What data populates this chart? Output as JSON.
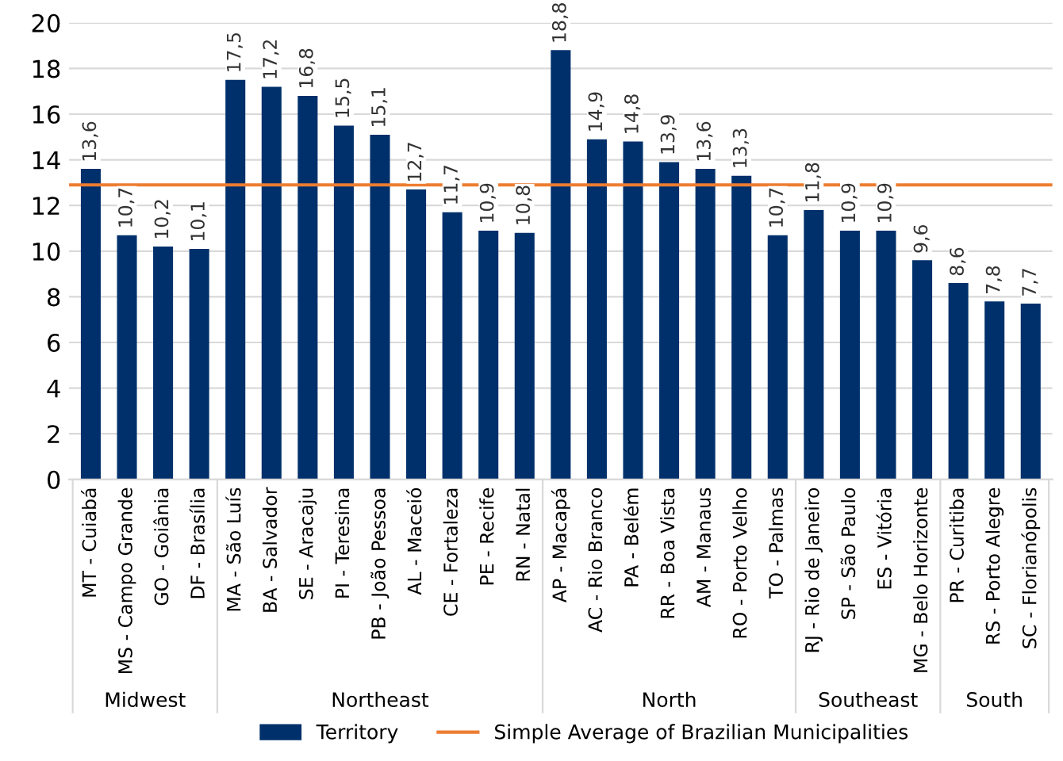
{
  "chart_data": {
    "type": "bar",
    "categories": [
      "MT - Cuiabá",
      "MS - Campo Grande",
      "GO - Goiânia",
      "DF - Brasília",
      "MA - São Luís",
      "BA - Salvador",
      "SE - Aracaju",
      "PI - Teresina",
      "PB - João Pessoa",
      "AL - Maceió",
      "CE - Fortaleza",
      "PE - Recife",
      "RN - Natal",
      "AP - Macapá",
      "AC - Rio Branco",
      "PA - Belém",
      "RR - Boa Vista",
      "AM - Manaus",
      "RO - Porto Velho",
      "TO - Palmas",
      "RJ - Rio de Janeiro",
      "SP - São Paulo",
      "ES - Vitória",
      "MG - Belo Horizonte",
      "PR - Curitiba",
      "RS - Porto Alegre",
      "SC - Florianópolis"
    ],
    "series": [
      {
        "name": "Territory",
        "color": "#00306b",
        "values": [
          13.6,
          10.7,
          10.2,
          10.1,
          17.5,
          17.2,
          16.8,
          15.5,
          15.1,
          12.7,
          11.7,
          10.9,
          10.8,
          18.8,
          14.9,
          14.8,
          13.9,
          13.6,
          13.3,
          10.7,
          11.8,
          10.9,
          10.9,
          9.6,
          8.6,
          7.8,
          7.7
        ],
        "value_labels": [
          "13,6",
          "10,7",
          "10,2",
          "10,1",
          "17,5",
          "17,2",
          "16,8",
          "15,5",
          "15,1",
          "12,7",
          "11,7",
          "10,9",
          "10,8",
          "18,8",
          "14,9",
          "14,8",
          "13,9",
          "13,6",
          "13,3",
          "10,7",
          "11,8",
          "10,9",
          "10,9",
          "9,6",
          "8,6",
          "7,8",
          "7,7"
        ]
      }
    ],
    "ref_lines": [
      {
        "axis": "y",
        "value": 12.9,
        "label": "Simple Average of Brazilian Municipalities",
        "color": "#ed7d31"
      }
    ],
    "annotations": [
      "Midwest",
      "Northeast",
      "North",
      "Southeast",
      "South"
    ],
    "ylim": [
      0,
      20
    ],
    "yticks": [
      0,
      2,
      4,
      6,
      8,
      10,
      12,
      14,
      16,
      18,
      20
    ],
    "grid": "y",
    "legend": "bottom"
  }
}
